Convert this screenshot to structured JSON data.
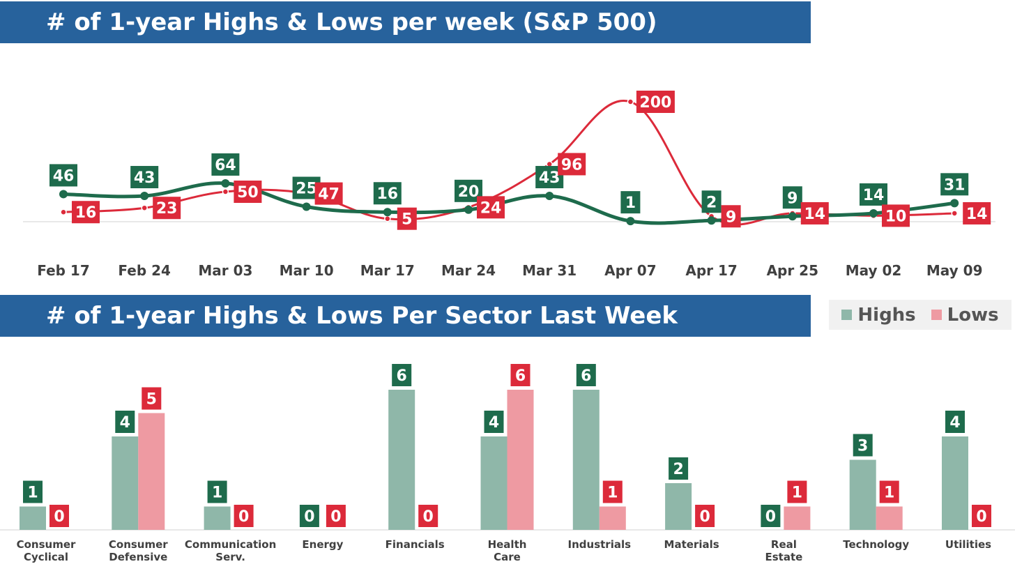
{
  "top_title": "# of 1-year Highs & Lows per week (S&P 500)",
  "bottom_title": "# of 1-year Highs & Lows Per Sector Last Week",
  "legend": {
    "highs": "Highs",
    "lows": "Lows"
  },
  "colors": {
    "banner": "#27629c",
    "highs_line": "#1e6b4c",
    "lows_line": "#dc2a3a",
    "highs_bar": "#8fb7a9",
    "lows_bar": "#ee9aa2",
    "highs_label": "#1e6b4c",
    "lows_label": "#dc2a3a"
  },
  "chart_data": [
    {
      "type": "line",
      "title": "# of 1-year Highs & Lows per week (S&P 500)",
      "categories": [
        "Feb 17",
        "Feb 24",
        "Mar 03",
        "Mar 10",
        "Mar 17",
        "Mar 24",
        "Mar 31",
        "Apr 07",
        "Apr 17",
        "Apr 25",
        "May 02",
        "May 09"
      ],
      "series": [
        {
          "name": "Highs",
          "values": [
            46,
            43,
            64,
            25,
            16,
            20,
            43,
            1,
            2,
            9,
            14,
            31
          ]
        },
        {
          "name": "Lows",
          "values": [
            16,
            23,
            50,
            47,
            5,
            24,
            96,
            200,
            9,
            14,
            10,
            14
          ]
        }
      ],
      "grid": false
    },
    {
      "type": "bar",
      "title": "# of 1-year Highs & Lows Per Sector Last Week",
      "categories": [
        "Consumer Cyclical",
        "Consumer Defensive",
        "Communication Serv.",
        "Energy",
        "Financials",
        "Health Care",
        "Industrials",
        "Materials",
        "Real Estate",
        "Technology",
        "Utilities"
      ],
      "series": [
        {
          "name": "Highs",
          "values": [
            1,
            4,
            1,
            0,
            6,
            4,
            6,
            2,
            0,
            3,
            4
          ]
        },
        {
          "name": "Lows",
          "values": [
            0,
            5,
            0,
            0,
            0,
            6,
            1,
            0,
            1,
            1,
            0
          ]
        }
      ],
      "legend_position": "top-right",
      "grid": false
    }
  ]
}
